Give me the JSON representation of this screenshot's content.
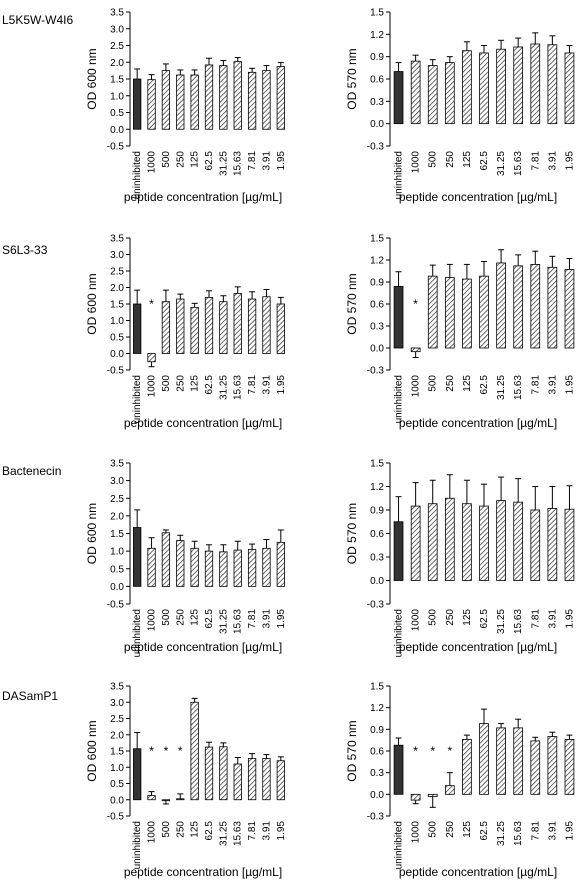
{
  "x_categories": [
    "uninhibited",
    "1000",
    "500",
    "250",
    "125",
    "62.5",
    "31.25",
    "15.63",
    "7.81",
    "3.91",
    "1.95"
  ],
  "xlabel": "peptide concentration [µg/mL]",
  "colors": {
    "control": "#333333",
    "hatch": "#444444",
    "axis": "#000000"
  },
  "chart_data": [
    {
      "type": "bar",
      "peptide": "L5K5W-W4I6",
      "ylabel": "OD 600 nm",
      "ylim": [
        -0.5,
        3.5
      ],
      "yticks": [
        "-0.5",
        "0.0",
        "0.5",
        "1.0",
        "1.5",
        "2.0",
        "2.5",
        "3.0",
        "3.5"
      ],
      "values": [
        1.5,
        1.48,
        1.75,
        1.62,
        1.62,
        1.92,
        1.9,
        2.02,
        1.7,
        1.75,
        1.87
      ],
      "errors": [
        0.3,
        0.15,
        0.2,
        0.15,
        0.15,
        0.2,
        0.15,
        0.12,
        0.12,
        0.15,
        0.12
      ],
      "significant": []
    },
    {
      "type": "bar",
      "peptide": "L5K5W-W4I6",
      "ylabel": "OD 570 nm",
      "ylim": [
        -0.3,
        1.5
      ],
      "yticks": [
        "-0.3",
        "0.0",
        "0.3",
        "0.6",
        "0.9",
        "1.2",
        "1.5"
      ],
      "values": [
        0.7,
        0.84,
        0.78,
        0.82,
        0.98,
        0.95,
        1.0,
        1.03,
        1.07,
        1.06,
        0.95
      ],
      "errors": [
        0.12,
        0.08,
        0.08,
        0.08,
        0.12,
        0.1,
        0.12,
        0.12,
        0.15,
        0.12,
        0.1
      ],
      "significant": []
    },
    {
      "type": "bar",
      "peptide": "S6L3-33",
      "ylabel": "OD 600 nm",
      "ylim": [
        -0.5,
        3.5
      ],
      "yticks": [
        "-0.5",
        "0.0",
        "0.5",
        "1.0",
        "1.5",
        "2.0",
        "2.5",
        "3.0",
        "3.5"
      ],
      "values": [
        1.5,
        -0.25,
        1.57,
        1.65,
        1.4,
        1.7,
        1.57,
        1.82,
        1.65,
        1.72,
        1.5
      ],
      "errors": [
        0.42,
        0.15,
        0.35,
        0.15,
        0.12,
        0.2,
        0.18,
        0.2,
        0.22,
        0.22,
        0.2
      ],
      "significant": [
        1
      ]
    },
    {
      "type": "bar",
      "peptide": "S6L3-33",
      "ylabel": "OD 570 nm",
      "ylim": [
        -0.3,
        1.5
      ],
      "yticks": [
        "-0.3",
        "0.0",
        "0.3",
        "0.6",
        "0.9",
        "1.2",
        "1.5"
      ],
      "values": [
        0.84,
        -0.05,
        0.98,
        0.96,
        0.94,
        0.98,
        1.16,
        1.12,
        1.14,
        1.1,
        1.07
      ],
      "errors": [
        0.2,
        0.08,
        0.15,
        0.18,
        0.2,
        0.2,
        0.18,
        0.15,
        0.18,
        0.15,
        0.15
      ],
      "significant": [
        1
      ]
    },
    {
      "type": "bar",
      "peptide": "Bactenecin",
      "ylabel": "OD 600 nm",
      "ylim": [
        -0.5,
        3.5
      ],
      "yticks": [
        "-0.5",
        "0.0",
        "0.5",
        "1.0",
        "1.5",
        "2.0",
        "2.5",
        "3.0",
        "3.5"
      ],
      "values": [
        1.67,
        1.08,
        1.52,
        1.3,
        1.08,
        1.0,
        0.98,
        1.03,
        1.05,
        1.08,
        1.25
      ],
      "errors": [
        0.5,
        0.3,
        0.08,
        0.15,
        0.2,
        0.18,
        0.2,
        0.25,
        0.15,
        0.25,
        0.35
      ],
      "significant": []
    },
    {
      "type": "bar",
      "peptide": "Bactenecin",
      "ylabel": "OD 570 nm",
      "ylim": [
        -0.3,
        1.5
      ],
      "yticks": [
        "-0.3",
        "0.0",
        "0.3",
        "0.6",
        "0.9",
        "1.2",
        "1.5"
      ],
      "values": [
        0.75,
        0.95,
        0.98,
        1.05,
        0.98,
        0.95,
        1.02,
        1.0,
        0.9,
        0.92,
        0.91
      ],
      "errors": [
        0.32,
        0.3,
        0.3,
        0.3,
        0.3,
        0.28,
        0.3,
        0.3,
        0.3,
        0.28,
        0.3
      ],
      "significant": []
    },
    {
      "type": "bar",
      "peptide": "DASamP1",
      "ylabel": "OD 600 nm",
      "ylim": [
        -0.5,
        3.5
      ],
      "yticks": [
        "-0.5",
        "0.0",
        "0.5",
        "1.0",
        "1.5",
        "2.0",
        "2.5",
        "3.0",
        "3.5"
      ],
      "values": [
        1.57,
        0.13,
        -0.03,
        0.03,
        3.0,
        1.62,
        1.63,
        1.1,
        1.27,
        1.27,
        1.2
      ],
      "errors": [
        0.5,
        0.12,
        0.1,
        0.15,
        0.12,
        0.15,
        0.12,
        0.2,
        0.15,
        0.12,
        0.12
      ],
      "significant": [
        1,
        2,
        3
      ]
    },
    {
      "type": "bar",
      "peptide": "DASamP1",
      "ylabel": "OD 570 nm",
      "ylim": [
        -0.3,
        1.5
      ],
      "yticks": [
        "-0.3",
        "0.0",
        "0.3",
        "0.6",
        "0.9",
        "1.2",
        "1.5"
      ],
      "values": [
        0.68,
        -0.08,
        -0.03,
        0.12,
        0.76,
        0.98,
        0.92,
        0.92,
        0.74,
        0.8,
        0.76
      ],
      "errors": [
        0.1,
        0.05,
        0.15,
        0.18,
        0.06,
        0.2,
        0.06,
        0.12,
        0.05,
        0.06,
        0.06
      ],
      "significant": [
        1,
        2,
        3
      ]
    }
  ]
}
